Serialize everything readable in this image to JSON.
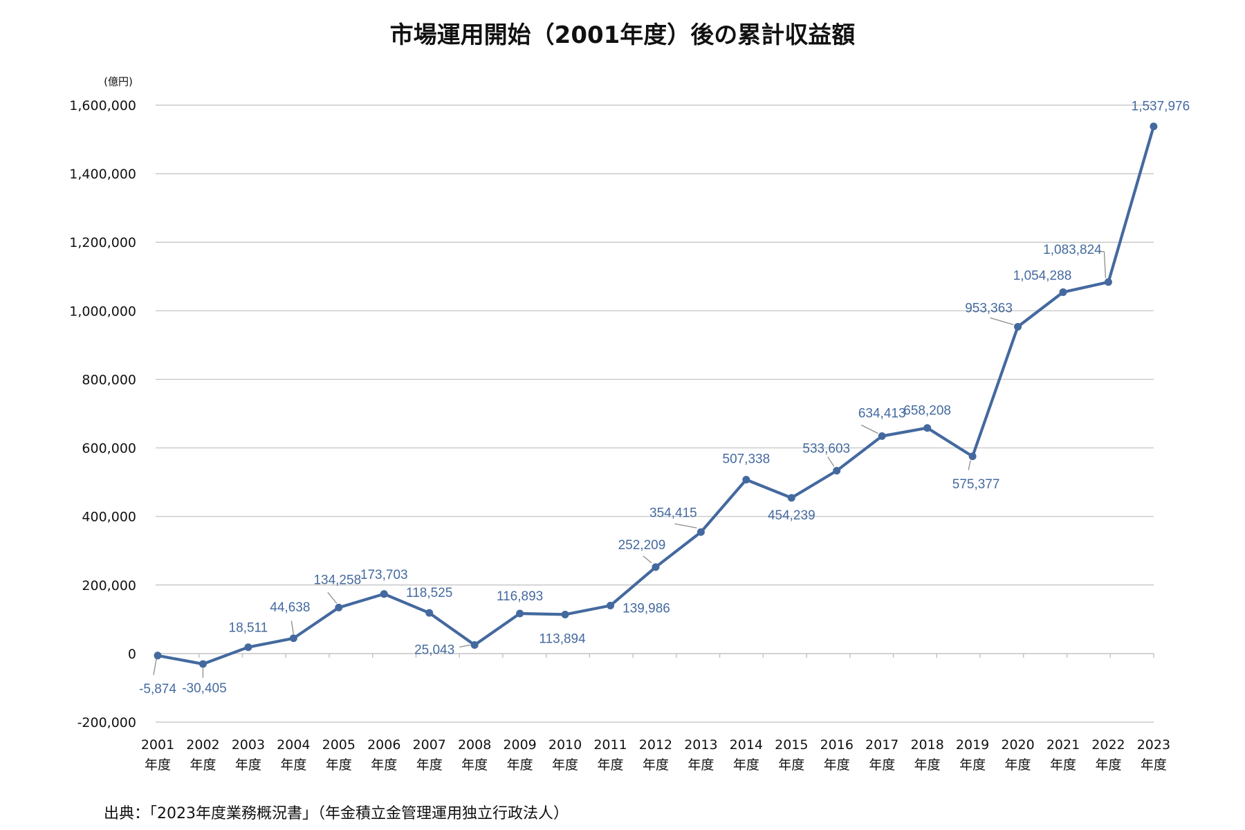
{
  "chart_data": {
    "type": "line",
    "title": "市場運用開始（2001年度）後の累計収益額",
    "unit_label": "(億円)",
    "xlabel": "",
    "ylabel": "",
    "ylim": [
      -200000,
      1600000
    ],
    "yticks": [
      -200000,
      0,
      200000,
      400000,
      600000,
      800000,
      1000000,
      1200000,
      1400000,
      1600000
    ],
    "ytick_labels": [
      "-200,000",
      "0",
      "200,000",
      "400,000",
      "600,000",
      "800,000",
      "1,000,000",
      "1,200,000",
      "1,400,000",
      "1,600,000"
    ],
    "grid": true,
    "categories": [
      "2001",
      "2002",
      "2003",
      "2004",
      "2005",
      "2006",
      "2007",
      "2008",
      "2009",
      "2010",
      "2011",
      "2012",
      "2013",
      "2014",
      "2015",
      "2016",
      "2017",
      "2018",
      "2019",
      "2020",
      "2021",
      "2022",
      "2023"
    ],
    "category_suffix": "年度",
    "series": [
      {
        "name": "累計収益額",
        "color": "#44699F",
        "values": [
          -5874,
          -30405,
          18511,
          44638,
          134258,
          173703,
          118525,
          25043,
          116893,
          113894,
          139986,
          252209,
          354415,
          507338,
          454239,
          533603,
          634413,
          658208,
          575377,
          953363,
          1054288,
          1083824,
          1537976
        ],
        "value_labels": [
          "-5,874",
          "-30,405",
          "18,511",
          "44,638",
          "134,258",
          "173,703",
          "118,525",
          "25,043",
          "116,893",
          "113,894",
          "139,986",
          "252,209",
          "354,415",
          "507,338",
          "454,239",
          "533,603",
          "634,413",
          "658,208",
          "575,377",
          "953,363",
          "1,054,288",
          "1,083,824",
          "1,537,976"
        ]
      }
    ],
    "source": "出典：「2023年度業務概況書」（年金積立金管理運用独立行政法人）"
  },
  "colors": {
    "line": "#44699F",
    "label": "#44699F",
    "grid": "#BFBFBF",
    "leader": "#8C8C8C",
    "text": "#111111"
  }
}
